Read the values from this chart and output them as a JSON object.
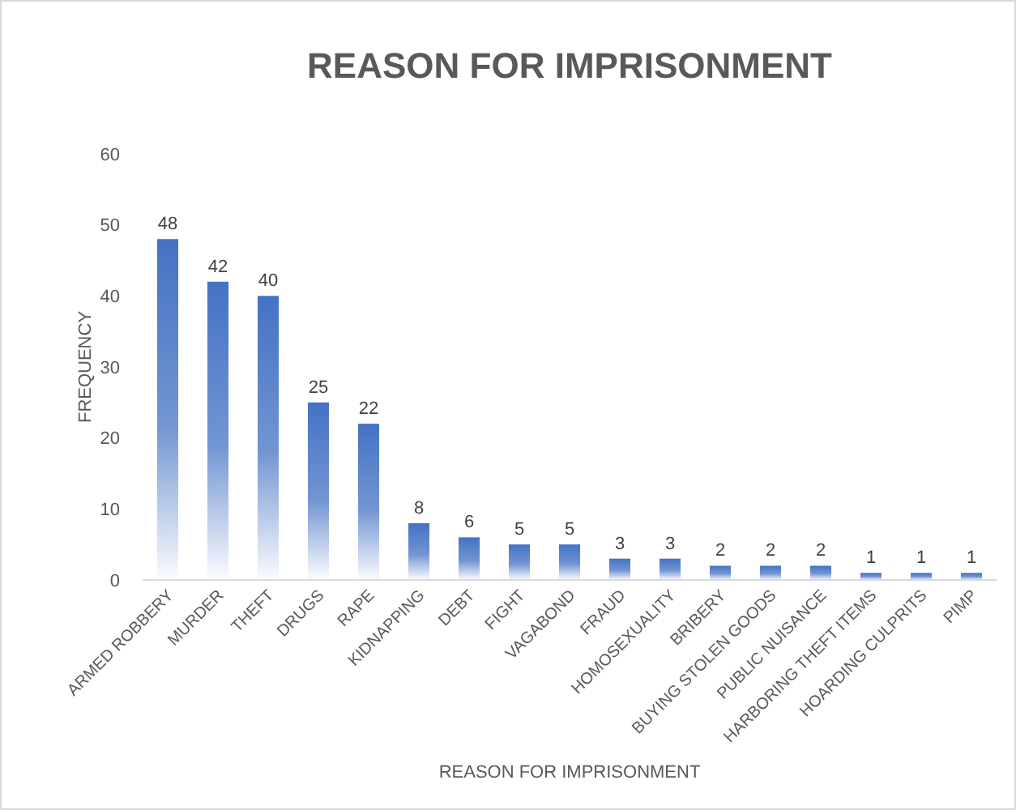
{
  "chart_data": {
    "type": "bar",
    "title": "REASON FOR IMPRISONMENT",
    "xlabel": "REASON FOR IMPRISONMENT",
    "ylabel": "FREQUENCY",
    "categories": [
      "ARMED ROBBERY",
      "MURDER",
      "THEFT",
      "DRUGS",
      "RAPE",
      "KIDNAPPING",
      "DEBT",
      "FIGHT",
      "VAGABOND",
      "FRAUD",
      "HOMOSEXUALITY",
      "BRIBERY",
      "BUYING STOLEN GOODS",
      "PUBLIC NUISANCE",
      "HARBORING THEFT ITEMS",
      "HOARDING CULPRITS",
      "PIMP"
    ],
    "values": [
      48,
      42,
      40,
      25,
      22,
      8,
      6,
      5,
      5,
      3,
      3,
      2,
      2,
      2,
      1,
      1,
      1
    ],
    "color": "#4472c4",
    "ylim": [
      0,
      60
    ],
    "yticks": [
      0,
      10,
      20,
      30,
      40,
      50,
      60
    ],
    "data_labels": true
  }
}
